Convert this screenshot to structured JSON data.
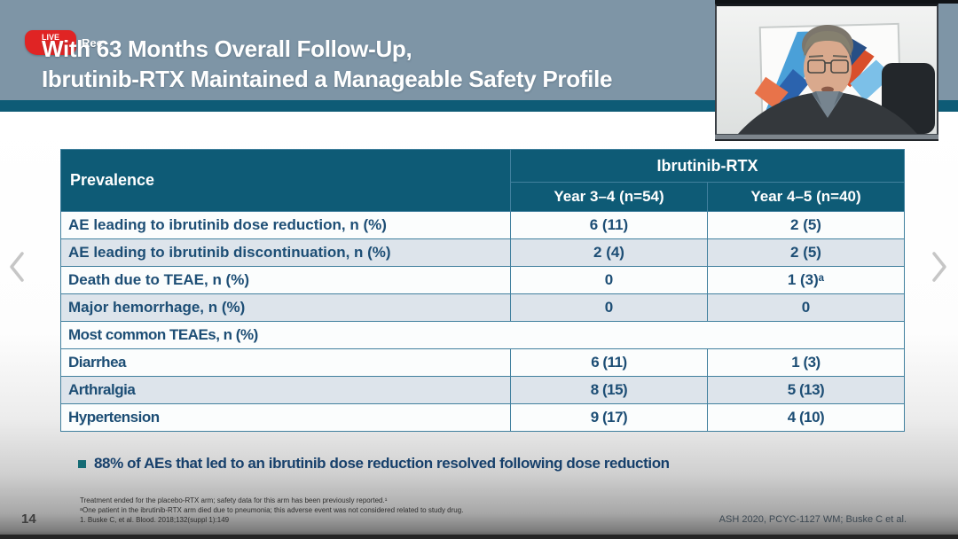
{
  "rec_badge": {
    "icon_text": "LIVE",
    "label": "Rec"
  },
  "title": {
    "line1": "With 63 Months Overall Follow-Up,",
    "line2": "Ibrutinib-RTX Maintained a Manageable Safety Profile"
  },
  "table": {
    "corner_header": "Prevalence",
    "group_header": "Ibrutinib-RTX",
    "col_headers": [
      "Year 3–4 (n=54)",
      "Year 4–5 (n=40)"
    ],
    "rows": [
      {
        "label": "AE leading to ibrutinib dose reduction, n (%)",
        "values": [
          "6 (11)",
          "2 (5)"
        ],
        "alt": false,
        "span": false
      },
      {
        "label": "AE leading to ibrutinib discontinuation, n (%)",
        "values": [
          "2 (4)",
          "2 (5)"
        ],
        "alt": true,
        "span": false
      },
      {
        "label": "Death due to TEAE, n (%)",
        "values": [
          "0",
          "1 (3)ᵃ"
        ],
        "alt": false,
        "span": false
      },
      {
        "label": "Major hemorrhage, n (%)",
        "values": [
          "0",
          "0"
        ],
        "alt": true,
        "span": false
      },
      {
        "label": "Most common TEAEs, n (%)",
        "values": [],
        "alt": false,
        "span": true
      },
      {
        "label": "Diarrhea",
        "values": [
          "6 (11)",
          "1 (3)"
        ],
        "alt": false,
        "span": false
      },
      {
        "label": "Arthralgia",
        "values": [
          "8 (15)",
          "5 (13)"
        ],
        "alt": true,
        "span": false
      },
      {
        "label": "Hypertension",
        "values": [
          "9 (17)",
          "4 (10)"
        ],
        "alt": false,
        "span": false
      }
    ]
  },
  "bullet": {
    "text": "88% of AEs that led to an ibrutinib dose reduction resolved following dose reduction"
  },
  "footnotes": [
    "Treatment ended for the placebo-RTX arm; safety data for this arm has been previously reported.¹",
    "ᵃOne patient in the ibrutinib-RTX arm died due to pneumonia; this adverse event was not considered related to study drug.",
    "1. Buske C, et al. Blood. 2018;132(suppl 1):149"
  ],
  "page_number": "14",
  "citation": "ASH 2020, PCYC-1127 WM; Buske C et al.",
  "colors": {
    "header_bg": "#7E95A6",
    "accent_teal": "#0E5B76",
    "table_border": "#41809E",
    "row_alt": "#DDE4EB",
    "text_dark_blue": "#1D4E75",
    "rec_red": "#E02424"
  }
}
